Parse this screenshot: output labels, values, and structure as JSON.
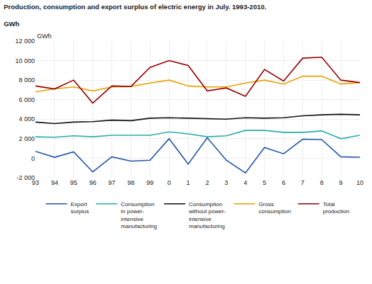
{
  "chart_data": {
    "type": "line",
    "title": "Production, consumption and export surplus of electric energy in July. 1993-2010.",
    "subtitle": "GWh",
    "ylabel": "GWh",
    "categories": [
      "93",
      "94",
      "95",
      "96",
      "97",
      "98",
      "99",
      "0",
      "1",
      "2",
      "3",
      "4",
      "5",
      "6",
      "7",
      "8",
      "9",
      "10"
    ],
    "series": [
      {
        "name": "Export\nsurplus",
        "color": "#2255aa",
        "values": [
          700,
          100,
          650,
          -1400,
          150,
          -300,
          -200,
          2000,
          -600,
          2100,
          -200,
          -1500,
          1100,
          450,
          1950,
          1900,
          150,
          100
        ]
      },
      {
        "name": "Consumption\nin power-\nintensive\nmanufacturing",
        "color": "#2aada8",
        "values": [
          2200,
          2150,
          2300,
          2200,
          2350,
          2350,
          2350,
          2700,
          2500,
          2200,
          2300,
          2850,
          2850,
          2650,
          2650,
          2800,
          2000,
          2350
        ]
      },
      {
        "name": "Consumption\nwithout power-\nintensive\nmanufacturing",
        "color": "#111111",
        "values": [
          3700,
          3550,
          3700,
          3750,
          3900,
          3850,
          4100,
          4150,
          4100,
          4050,
          4000,
          4150,
          4100,
          4150,
          4350,
          4450,
          4500,
          4450
        ]
      },
      {
        "name": "Gross\nconsumption",
        "color": "#e8a000",
        "values": [
          6800,
          7100,
          7300,
          6900,
          7300,
          7350,
          7700,
          8000,
          7400,
          7300,
          7300,
          7700,
          8000,
          7600,
          8400,
          8400,
          7600,
          7750
        ]
      },
      {
        "name": "Total\nproduction",
        "color": "#990000",
        "values": [
          7400,
          7100,
          8000,
          5650,
          7400,
          7350,
          9300,
          10000,
          9500,
          6900,
          7200,
          6350,
          9100,
          7900,
          10250,
          10350,
          8000,
          7750
        ]
      }
    ],
    "ylim": [
      -2000,
      12000
    ],
    "yticks": [
      {
        "value": -2000,
        "label": "-2 000"
      },
      0,
      {
        "value": 2000,
        "label": "2 000"
      },
      {
        "value": 4000,
        "label": "4 000"
      },
      {
        "value": 6000,
        "label": "6 000"
      },
      {
        "value": 8000,
        "label": "8 000"
      },
      {
        "value": 10000,
        "label": "10 000"
      },
      {
        "value": 12000,
        "label": "12 000"
      }
    ],
    "grid": true,
    "legend": "bottom"
  }
}
